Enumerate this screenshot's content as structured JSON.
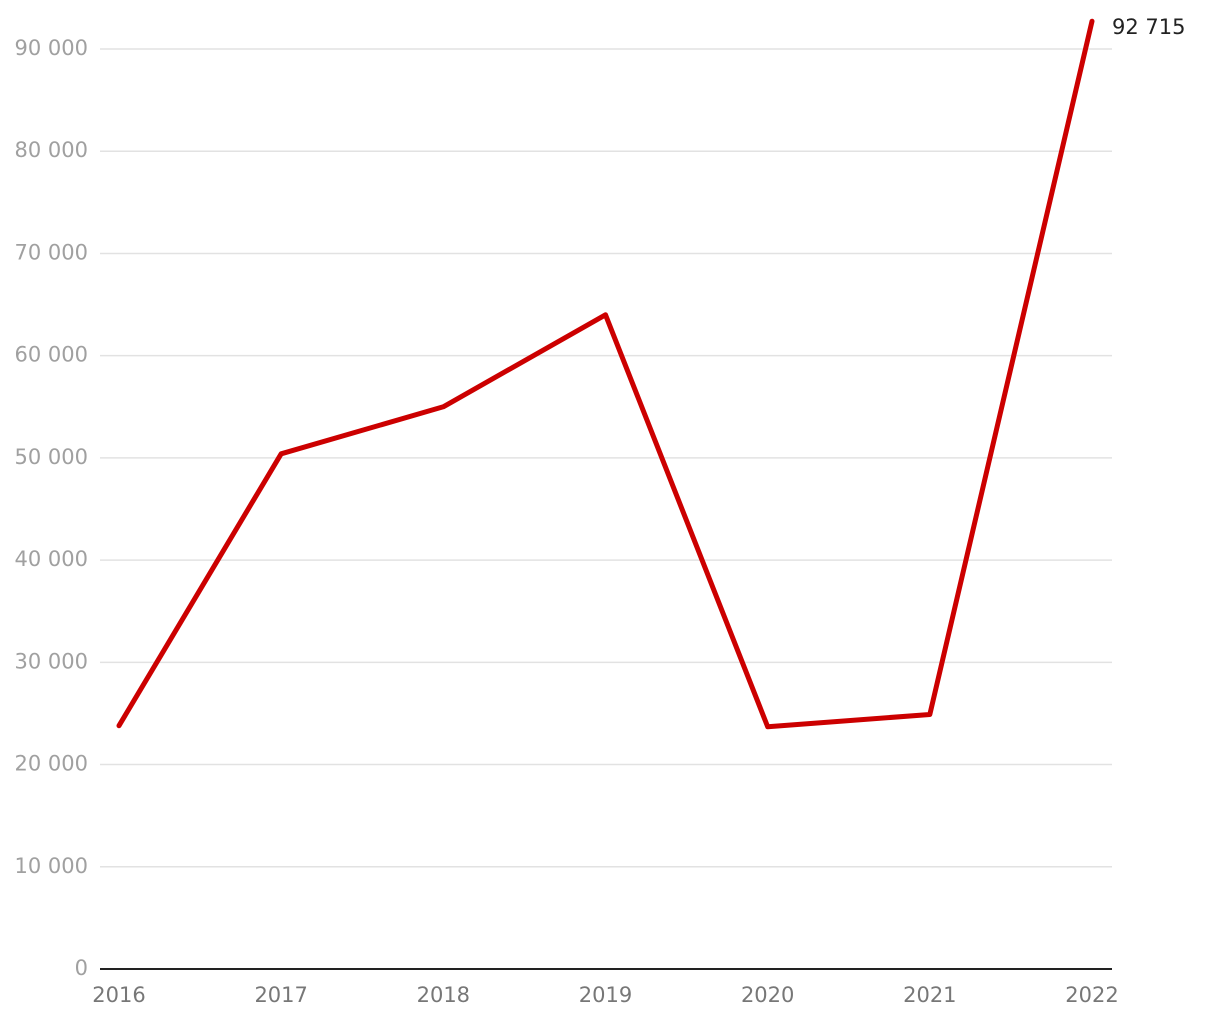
{
  "chart_data": {
    "type": "line",
    "categories": [
      "2016",
      "2017",
      "2018",
      "2019",
      "2020",
      "2021",
      "2022"
    ],
    "series": [
      {
        "color": "#cc0000",
        "values": [
          23800,
          50400,
          55000,
          64000,
          23700,
          24900,
          92715
        ],
        "value_labels": [
          null,
          null,
          null,
          null,
          null,
          null,
          "92 715"
        ]
      }
    ],
    "ylim": [
      0,
      90000
    ],
    "yticks": [
      0,
      {
        "value": 10000,
        "label": "10 000"
      },
      {
        "value": 20000,
        "label": "20 000"
      },
      {
        "value": 30000,
        "label": "30 000"
      },
      {
        "value": 40000,
        "label": "40 000"
      },
      {
        "value": 50000,
        "label": "50 000"
      },
      {
        "value": 60000,
        "label": "60 000"
      },
      {
        "value": 70000,
        "label": "70 000"
      },
      {
        "value": 80000,
        "label": "80 000"
      },
      {
        "value": 90000,
        "label": "90 000"
      }
    ],
    "grid": true
  }
}
